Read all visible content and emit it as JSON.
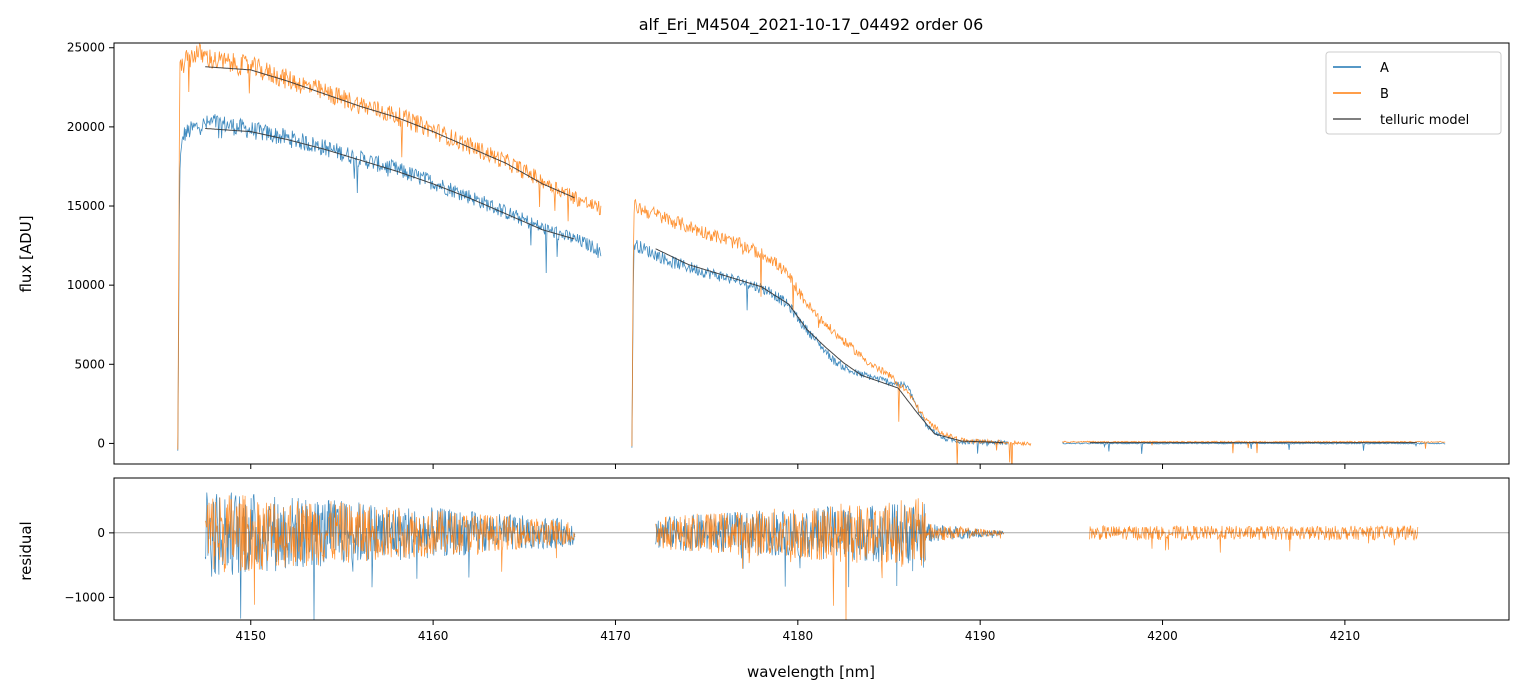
{
  "chart_data": [
    {
      "type": "line",
      "title": "alf_Eri_M4504_2021-10-17_04492  order 06",
      "xlabel": "",
      "ylabel": "flux [ADU]",
      "xlim": [
        4142.5,
        4219
      ],
      "ylim": [
        -1300,
        25300
      ],
      "y_ticks": [
        0,
        5000,
        10000,
        15000,
        20000,
        25000
      ],
      "y_tick_labels": [
        "0",
        "5000",
        "10000",
        "15000",
        "20000",
        "25000"
      ],
      "x_ticks": [
        4150,
        4160,
        4170,
        4180,
        4190,
        4200,
        4210
      ],
      "legend_position": "top-right",
      "colors": {
        "A": "#1f77b4",
        "B": "#ff7f0e",
        "telluric": "#333333"
      },
      "series": [
        {
          "name": "A",
          "segments": [
            {
              "x": [
                4146.0,
                4146.1,
                4146.3,
                4147.0,
                4148.0,
                4150.0,
                4152.0,
                4154.0,
                4156.0,
                4158.0,
                4160.0,
                4162.0,
                4164.0,
                4166.0,
                4168.0,
                4169.2
              ],
              "y": [
                -500,
                17500,
                19500,
                20000,
                20300,
                19800,
                19300,
                18700,
                18000,
                17300,
                16500,
                15600,
                14600,
                13600,
                12800,
                12200
              ]
            },
            {
              "x": [
                4170.9,
                4171.0,
                4173.0,
                4175.0,
                4177.0,
                4178.5,
                4179.5,
                4180.2,
                4181.0,
                4182.0,
                4183.0,
                4184.0,
                4185.0,
                4186.0,
                4187.0,
                4188.0,
                4189.0,
                4191.5
              ],
              "y": [
                -300,
                12600,
                11500,
                10800,
                10200,
                9600,
                8700,
                7600,
                6500,
                5200,
                4500,
                4200,
                3900,
                3600,
                1200,
                300,
                100,
                50
              ]
            },
            {
              "x": [
                4194.5,
                4200.0,
                4205.0,
                4210.0,
                4215.5
              ],
              "y": [
                0,
                0,
                0,
                0,
                0
              ]
            }
          ]
        },
        {
          "name": "B",
          "segments": [
            {
              "x": [
                4146.0,
                4146.1,
                4146.3,
                4147.0,
                4148.0,
                4150.0,
                4152.0,
                4154.0,
                4156.0,
                4158.0,
                4160.0,
                4162.0,
                4164.0,
                4166.0,
                4168.0,
                4169.2
              ],
              "y": [
                -500,
                23500,
                24000,
                24700,
                24200,
                23800,
                23000,
                22200,
                21400,
                20700,
                19800,
                18800,
                17800,
                16600,
                15400,
                14800
              ]
            },
            {
              "x": [
                4170.9,
                4171.0,
                4173.0,
                4175.0,
                4177.0,
                4178.5,
                4179.5,
                4180.2,
                4181.0,
                4182.0,
                4183.0,
                4184.0,
                4185.0,
                4186.0,
                4187.0,
                4188.0,
                4189.0,
                4192.8
              ],
              "y": [
                -300,
                15000,
                14100,
                13300,
                12500,
                11700,
                10600,
                9300,
                8100,
                7000,
                6000,
                5000,
                4300,
                3300,
                1500,
                600,
                200,
                0
              ]
            },
            {
              "x": [
                4194.5,
                4200.0,
                4205.0,
                4210.0,
                4215.5
              ],
              "y": [
                100,
                100,
                100,
                100,
                100
              ]
            }
          ]
        },
        {
          "name": "telluric model",
          "segments": [
            {
              "x": [
                4147.5,
                4150.0,
                4152.0,
                4154.0,
                4156.0,
                4158.0,
                4160.0,
                4162.0,
                4164.0,
                4166.0,
                4167.8
              ],
              "y": [
                23800,
                23600,
                22900,
                22100,
                21300,
                20600,
                19700,
                18700,
                17700,
                16400,
                15500
              ]
            },
            {
              "x": [
                4147.5,
                4150.0,
                4152.0,
                4154.0,
                4156.0,
                4158.0,
                4160.0,
                4162.0,
                4164.0,
                4166.0,
                4167.8
              ],
              "y": [
                19900,
                19700,
                19200,
                18600,
                17900,
                17200,
                16400,
                15500,
                14500,
                13500,
                12900
              ]
            },
            {
              "x": [
                4172.2,
                4174.0,
                4176.0,
                4178.0,
                4179.5,
                4180.5,
                4181.5,
                4182.5,
                4183.5,
                4184.5,
                4185.5,
                4186.5,
                4187.5,
                4189.0,
                4191.3
              ],
              "y": [
                12300,
                11300,
                10600,
                9900,
                8800,
                7200,
                6100,
                5100,
                4300,
                3900,
                3500,
                2000,
                600,
                150,
                50
              ]
            },
            {
              "x": [
                4196.0,
                4214.0
              ],
              "y": [
                50,
                50
              ]
            }
          ]
        }
      ]
    },
    {
      "type": "line",
      "title": "",
      "xlabel": "wavelength [nm]",
      "ylabel": "residual",
      "xlim": [
        4142.5,
        4219
      ],
      "ylim": [
        -1350,
        850
      ],
      "y_ticks": [
        -1000,
        0
      ],
      "y_tick_labels": [
        "−1000",
        "0"
      ],
      "x_ticks": [
        4150,
        4160,
        4170,
        4180,
        4190,
        4200,
        4210
      ],
      "x_tick_labels": [
        "4150",
        "4160",
        "4170",
        "4180",
        "4190",
        "4200",
        "4210"
      ],
      "zero_line": true,
      "colors": {
        "A": "#1f77b4",
        "B": "#ff7f0e"
      },
      "series": [
        {
          "name": "A",
          "segments": [
            {
              "x": [
                4147.5,
                4167.8
              ],
              "amplitude": [
                700,
                200
              ]
            },
            {
              "x": [
                4172.2,
                4187.0
              ],
              "amplitude": [
                250,
                500
              ]
            },
            {
              "x": [
                4187.0,
                4191.3
              ],
              "amplitude": [
                150,
                30
              ]
            }
          ]
        },
        {
          "name": "B",
          "segments": [
            {
              "x": [
                4147.5,
                4167.8
              ],
              "amplitude": [
                650,
                180
              ]
            },
            {
              "x": [
                4172.2,
                4187.0
              ],
              "amplitude": [
                250,
                550
              ]
            },
            {
              "x": [
                4187.0,
                4191.3
              ],
              "amplitude": [
                150,
                30
              ]
            },
            {
              "x": [
                4196.0,
                4214.0
              ],
              "amplitude": [
                110,
                110
              ]
            }
          ]
        }
      ]
    }
  ]
}
